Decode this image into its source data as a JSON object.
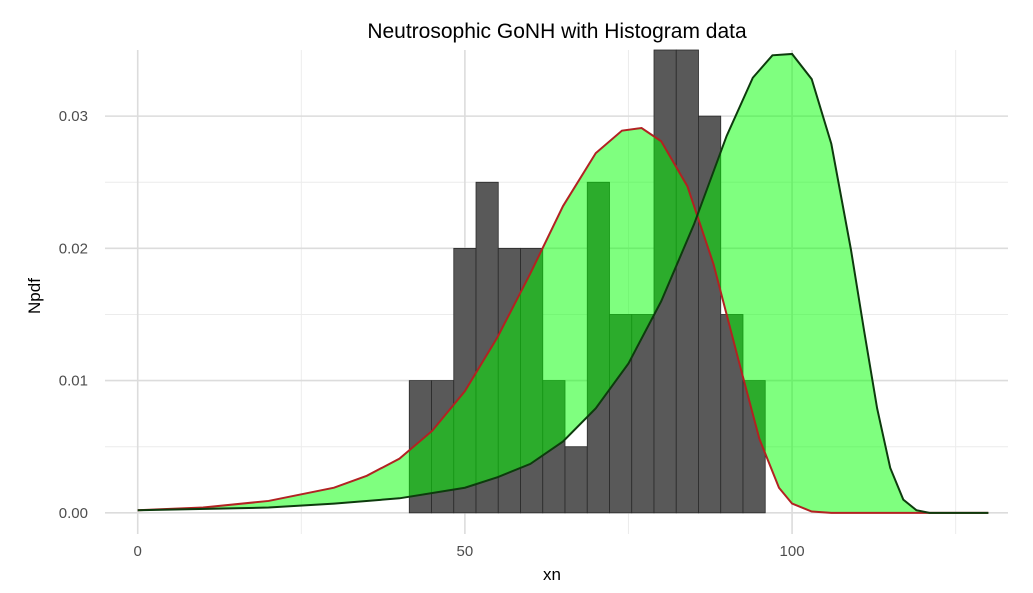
{
  "chart_data": {
    "type": "bar",
    "title": "Neutrosophic GoNH with Histogram data",
    "xlabel": "xn",
    "ylabel": "Npdf",
    "xlim": [
      -5,
      133
    ],
    "ylim": [
      -0.0016,
      0.035
    ],
    "x_ticks": [
      0,
      50,
      100
    ],
    "x_tick_labels": [
      "0",
      "50",
      "100"
    ],
    "y_ticks": [
      0,
      0.01,
      0.02,
      0.03
    ],
    "y_tick_labels": [
      "0.00",
      "0.01",
      "0.02",
      "0.03"
    ],
    "grid": true,
    "histogram": {
      "bin_width": 3.4,
      "bins": [
        {
          "x0": 41.5,
          "density": 0.01
        },
        {
          "x0": 44.9,
          "density": 0.01
        },
        {
          "x0": 48.3,
          "density": 0.02
        },
        {
          "x0": 51.7,
          "density": 0.025
        },
        {
          "x0": 55.1,
          "density": 0.02
        },
        {
          "x0": 58.5,
          "density": 0.02
        },
        {
          "x0": 61.9,
          "density": 0.01
        },
        {
          "x0": 65.3,
          "density": 0.005
        },
        {
          "x0": 68.7,
          "density": 0.025
        },
        {
          "x0": 72.1,
          "density": 0.015
        },
        {
          "x0": 75.5,
          "density": 0.015
        },
        {
          "x0": 78.9,
          "density": 0.035
        },
        {
          "x0": 82.3,
          "density": 0.035
        },
        {
          "x0": 85.7,
          "density": 0.03
        },
        {
          "x0": 89.1,
          "density": 0.015
        },
        {
          "x0": 92.5,
          "density": 0.01
        }
      ],
      "fill": "#595959"
    },
    "curves": {
      "lower": {
        "color": "#b22222",
        "points": [
          [
            0,
            0.0002
          ],
          [
            10,
            0.0004
          ],
          [
            20,
            0.0009
          ],
          [
            30,
            0.0019
          ],
          [
            35,
            0.0028
          ],
          [
            40,
            0.0041
          ],
          [
            45,
            0.0062
          ],
          [
            50,
            0.0092
          ],
          [
            55,
            0.0133
          ],
          [
            60,
            0.0181
          ],
          [
            65,
            0.0232
          ],
          [
            70,
            0.0272
          ],
          [
            74,
            0.0289
          ],
          [
            77,
            0.0291
          ],
          [
            80,
            0.0281
          ],
          [
            84,
            0.0247
          ],
          [
            88,
            0.0188
          ],
          [
            92,
            0.0112
          ],
          [
            95,
            0.0056
          ],
          [
            98,
            0.0019
          ],
          [
            100,
            0.0007
          ],
          [
            103,
            0.0001
          ],
          [
            106,
            0
          ],
          [
            110,
            0
          ],
          [
            130,
            0
          ]
        ]
      },
      "upper": {
        "color": "#0d3b0d",
        "points": [
          [
            0,
            0.0002
          ],
          [
            20,
            0.0004
          ],
          [
            30,
            0.0007
          ],
          [
            40,
            0.0011
          ],
          [
            50,
            0.0019
          ],
          [
            55,
            0.0027
          ],
          [
            60,
            0.0037
          ],
          [
            65,
            0.0054
          ],
          [
            70,
            0.0079
          ],
          [
            75,
            0.0113
          ],
          [
            80,
            0.016
          ],
          [
            85,
            0.0218
          ],
          [
            90,
            0.0285
          ],
          [
            94,
            0.0329
          ],
          [
            97,
            0.0346
          ],
          [
            100,
            0.0347
          ],
          [
            103,
            0.0328
          ],
          [
            106,
            0.0279
          ],
          [
            109,
            0.0199
          ],
          [
            111,
            0.0138
          ],
          [
            113,
            0.0079
          ],
          [
            115,
            0.0034
          ],
          [
            117,
            0.001
          ],
          [
            119,
            0.0002
          ],
          [
            121,
            0
          ],
          [
            130,
            0
          ]
        ]
      },
      "band_fill": "#00ff00",
      "band_opacity": 0.5
    }
  }
}
